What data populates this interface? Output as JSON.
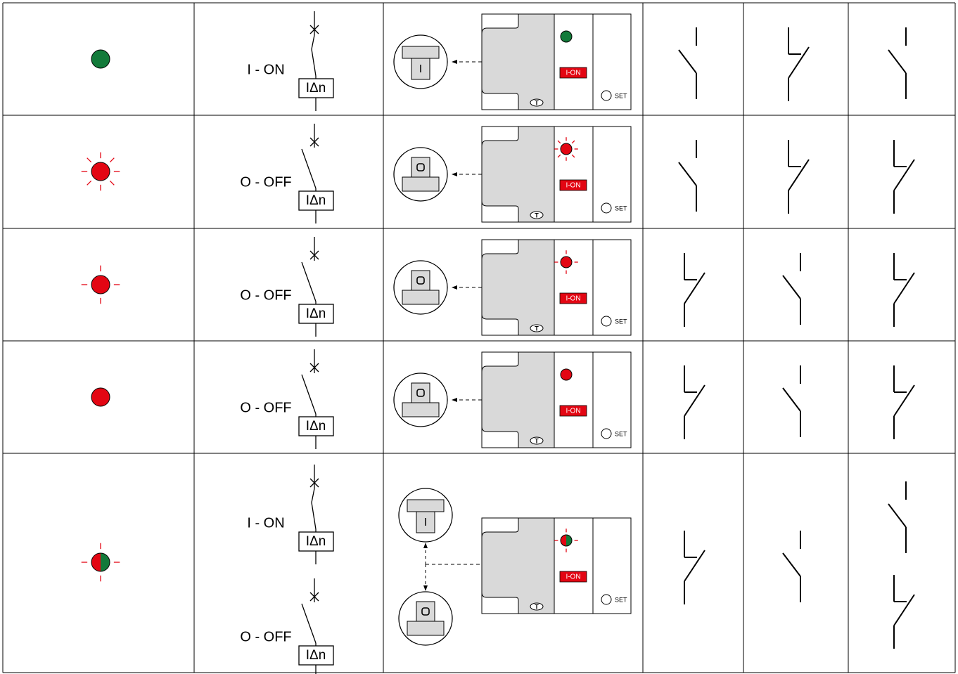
{
  "rows": [
    {
      "states": [
        {
          "label": "I - ON",
          "coil": "IΔn"
        }
      ],
      "knobs": [
        "I"
      ],
      "panel": {
        "button": "I-ON",
        "set": "SET",
        "test": "T"
      }
    },
    {
      "states": [
        {
          "label": "O - OFF",
          "coil": "IΔn"
        }
      ],
      "panel": {
        "button": "I-ON",
        "set": "SET",
        "test": "T"
      }
    },
    {
      "states": [
        {
          "label": "O - OFF",
          "coil": "IΔn"
        }
      ],
      "panel": {
        "button": "I-ON",
        "set": "SET",
        "test": "T"
      }
    },
    {
      "states": [
        {
          "label": "O - OFF",
          "coil": "IΔn"
        }
      ],
      "panel": {
        "button": "I-ON",
        "set": "SET",
        "test": "T"
      }
    },
    {
      "states": [
        {
          "label": "I - ON",
          "coil": "IΔn"
        },
        {
          "label": "O - OFF",
          "coil": "IΔn"
        }
      ],
      "knobs": [
        "I"
      ],
      "panel": {
        "button": "I-ON",
        "set": "SET",
        "test": "T"
      }
    }
  ]
}
